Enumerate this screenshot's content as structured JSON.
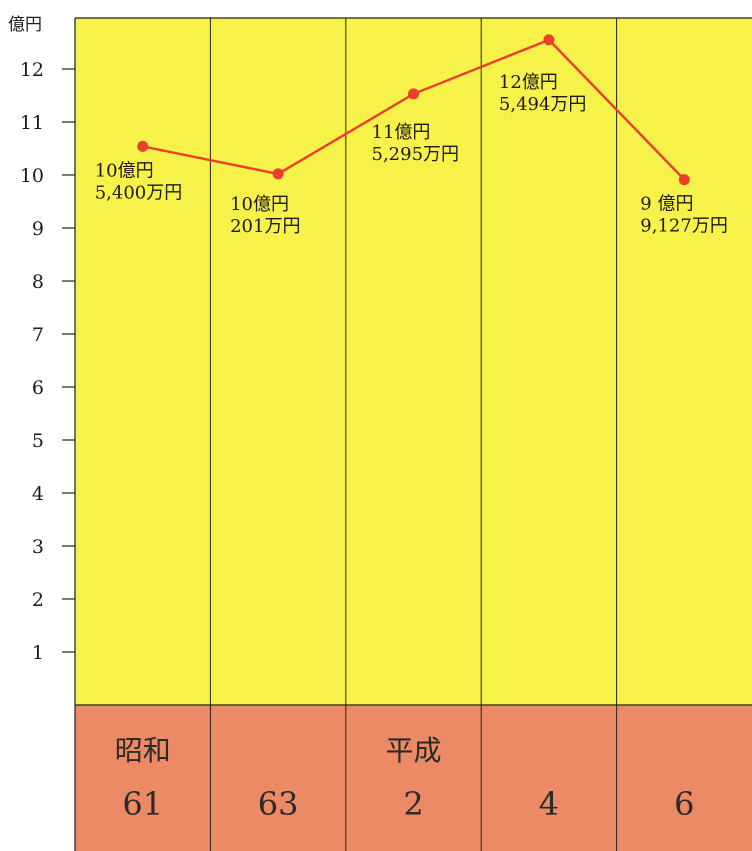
{
  "chart_data": {
    "type": "line",
    "ylabel": "億円",
    "ylim": [
      0,
      12.6
    ],
    "yticks": [
      "1",
      "2",
      "3",
      "4",
      "5",
      "6",
      "7",
      "8",
      "9",
      "10",
      "11",
      "12"
    ],
    "eras": [
      "昭和",
      "",
      "平成",
      "",
      ""
    ],
    "categories": [
      "61",
      "63",
      "2",
      "4",
      "6"
    ],
    "values": [
      10.54,
      10.0201,
      11.5295,
      12.5494,
      9.9127
    ],
    "point_labels": [
      [
        "10億円",
        "5,400万円"
      ],
      [
        "10億円",
        "201万円"
      ],
      [
        "11億円",
        "5,295万円"
      ],
      [
        "12億円",
        "5,494万円"
      ],
      [
        "9 億円",
        "9,127万円"
      ]
    ],
    "grid": false,
    "legend": "none"
  },
  "colors": {
    "plot_background": "#f7f24a",
    "category_band": "#ec8a66",
    "line": "#e8402a",
    "marker": "#e8402a",
    "divider": "#222222"
  }
}
